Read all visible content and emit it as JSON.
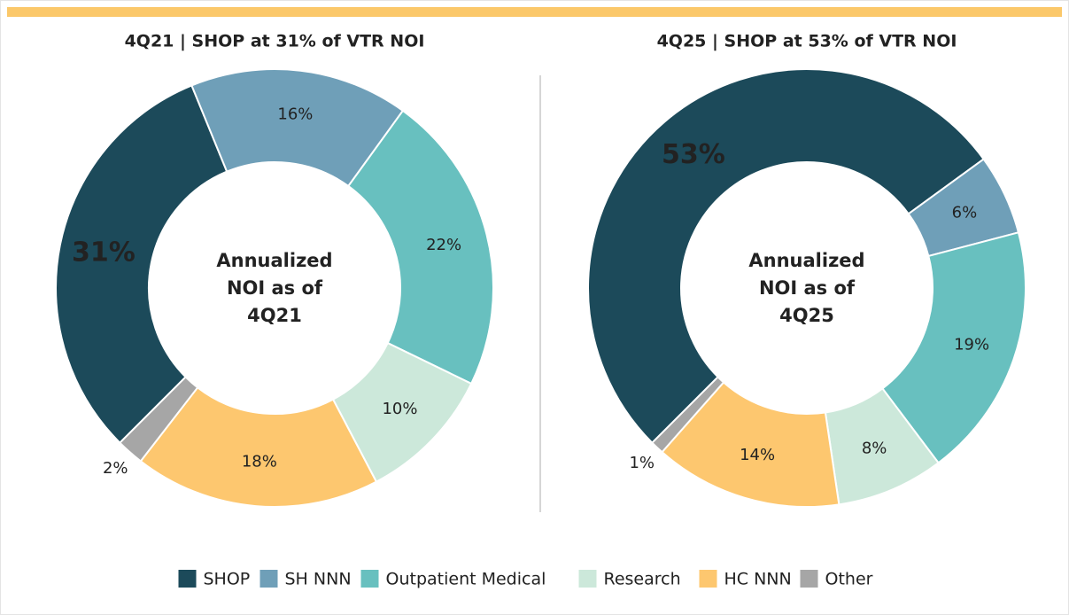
{
  "chart_data": [
    {
      "type": "donut",
      "title": "4Q21 | SHOP at 31% of  VTR NOI",
      "center_label": [
        "Annualized",
        "NOI as of",
        "4Q21"
      ],
      "categories": [
        "SHOP",
        "SH NNN",
        "Outpatient Medical",
        "Research",
        "HC NNN",
        "Other"
      ],
      "colors": [
        "#1c4a5a",
        "#6f9fb8",
        "#68c0bf",
        "#cce8da",
        "#fdc76f",
        "#a6a6a6"
      ],
      "values": [
        31,
        16,
        22,
        10,
        18,
        2
      ],
      "value_labels": [
        "31%",
        "16%",
        "22%",
        "10%",
        "18%",
        "2%"
      ]
    },
    {
      "type": "donut",
      "title": "4Q25 | SHOP at 53% of  VTR NOI",
      "center_label": [
        "Annualized",
        "NOI as of",
        "4Q25"
      ],
      "categories": [
        "SHOP",
        "SH NNN",
        "Outpatient Medical",
        "Research",
        "HC NNN",
        "Other"
      ],
      "colors": [
        "#1c4a5a",
        "#6f9fb8",
        "#68c0bf",
        "#cce8da",
        "#fdc76f",
        "#a6a6a6"
      ],
      "values": [
        53,
        6,
        19,
        8,
        14,
        1
      ],
      "value_labels": [
        "53%",
        "6%",
        "19%",
        "8%",
        "14%",
        "1%"
      ]
    }
  ]
}
